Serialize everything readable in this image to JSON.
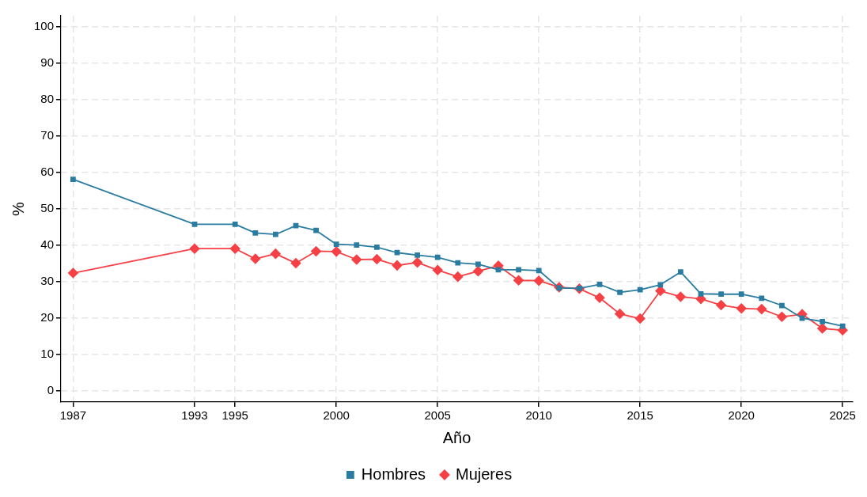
{
  "chart_data": {
    "type": "line",
    "xlabel": "Año",
    "ylabel": "%",
    "x": [
      1987,
      1993,
      1995,
      1996,
      1997,
      1998,
      1999,
      2000,
      2001,
      2002,
      2003,
      2004,
      2005,
      2006,
      2007,
      2008,
      2009,
      2010,
      2011,
      2012,
      2013,
      2014,
      2015,
      2016,
      2017,
      2018,
      2019,
      2020,
      2021,
      2022,
      2023,
      2024,
      2025
    ],
    "series": [
      {
        "name": "Hombres",
        "color": "#2a7ca0",
        "marker": "square",
        "values": [
          58.1,
          45.8,
          45.8,
          43.4,
          43.0,
          45.4,
          44.1,
          40.3,
          40.1,
          39.5,
          38.0,
          37.3,
          36.7,
          35.2,
          34.8,
          33.3,
          33.3,
          33.1,
          28.3,
          28.2,
          29.3,
          27.1,
          27.8,
          29.2,
          32.7,
          26.7,
          26.6,
          26.6,
          25.5,
          23.5,
          20.0,
          19.1,
          17.8
        ]
      },
      {
        "name": "Mujeres",
        "color": "#f54045",
        "marker": "diamond",
        "values": [
          32.4,
          39.1,
          39.1,
          36.3,
          37.7,
          35.1,
          38.4,
          38.3,
          36.1,
          36.2,
          34.5,
          35.3,
          33.2,
          31.4,
          32.9,
          34.4,
          30.4,
          30.3,
          28.5,
          28.1,
          25.6,
          21.2,
          19.9,
          27.5,
          25.9,
          25.3,
          23.6,
          22.7,
          22.5,
          20.4,
          21.1,
          17.2,
          16.7
        ]
      }
    ],
    "xlim": [
      1986.4,
      2025.5
    ],
    "xticks": [
      1987,
      1993,
      1995,
      2000,
      2005,
      2010,
      2015,
      2020,
      2025
    ],
    "ylim": [
      -3,
      103
    ],
    "yticks": [
      0,
      10,
      20,
      30,
      40,
      50,
      60,
      70,
      80,
      90,
      100
    ],
    "grid": true,
    "legend": "bottom",
    "line_style": "solid"
  }
}
